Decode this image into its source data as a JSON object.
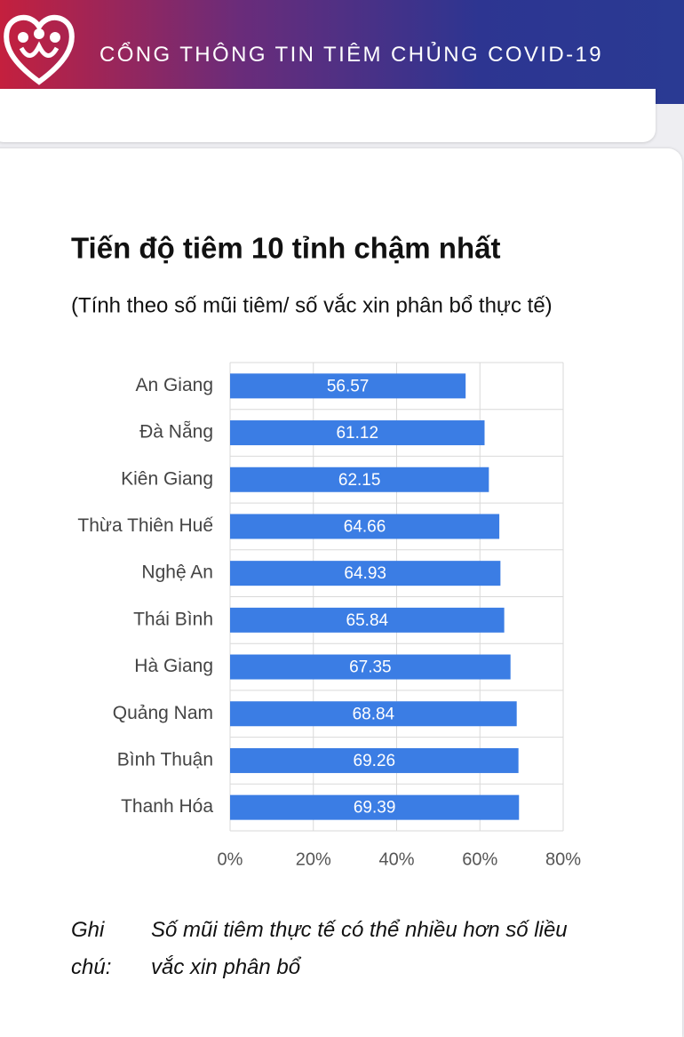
{
  "header": {
    "title": "CỔNG THÔNG TIN TIÊM CHỦNG COVID-19"
  },
  "chart_data": {
    "type": "bar",
    "orientation": "horizontal",
    "title": "Tiến độ tiêm 10 tỉnh chậm nhất",
    "subtitle": "(Tính theo số mũi tiêm/ số vắc xin phân bổ thực tế)",
    "categories": [
      "An Giang",
      "Đà Nẵng",
      "Kiên Giang",
      "Thừa Thiên Huế",
      "Nghệ An",
      "Thái Bình",
      "Hà Giang",
      "Quảng Nam",
      "Bình Thuận",
      "Thanh Hóa"
    ],
    "values": [
      56.57,
      61.12,
      62.15,
      64.66,
      64.93,
      65.84,
      67.35,
      68.84,
      69.26,
      69.39
    ],
    "color": "#3b7de4",
    "xlim": [
      0,
      80
    ],
    "xticks": [
      {
        "value": 0,
        "label": "0%"
      },
      {
        "value": 20,
        "label": "20%"
      },
      {
        "value": 40,
        "label": "40%"
      },
      {
        "value": 60,
        "label": "60%"
      },
      {
        "value": 80,
        "label": "80%"
      }
    ],
    "grid": true
  },
  "note": {
    "label": "Ghi chú:",
    "text": "Số mũi tiêm thực tế có thể nhiều hơn số liều vắc xin phân bổ"
  }
}
